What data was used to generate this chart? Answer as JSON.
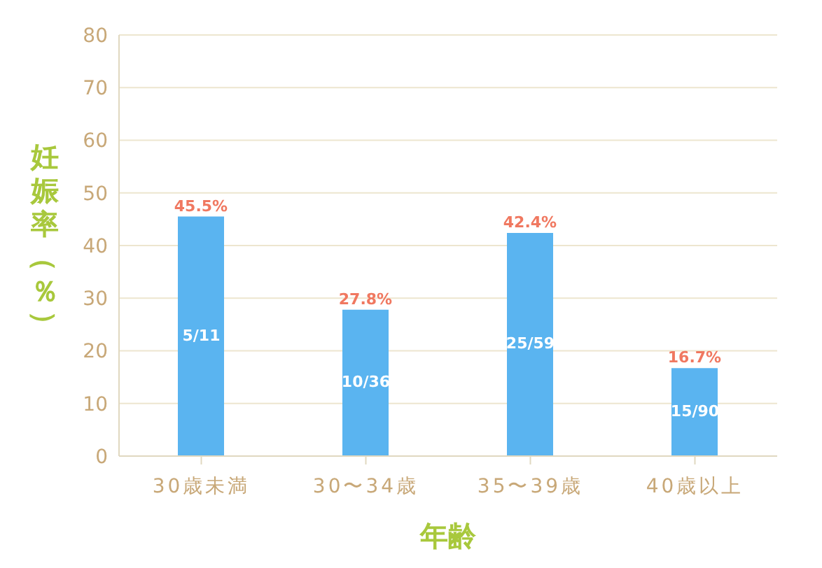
{
  "chart_data": {
    "type": "bar",
    "xlabel": "年齢",
    "ylabel": "妊娠率（％）",
    "categories": [
      "30歳未満",
      "30〜34歳",
      "35〜39歳",
      "40歳以上"
    ],
    "values": [
      45.5,
      27.8,
      42.4,
      16.7
    ],
    "color": "#5ab4f0",
    "value_labels": [
      "45.5%",
      "27.8%",
      "42.4%",
      "16.7%"
    ],
    "annotations": [
      "5/11",
      "10/36",
      "25/59",
      "15/90"
    ],
    "ylim": [
      0,
      80
    ],
    "yticks": [
      0,
      10,
      20,
      30,
      40,
      50,
      60,
      70,
      80
    ],
    "grid": "y"
  }
}
